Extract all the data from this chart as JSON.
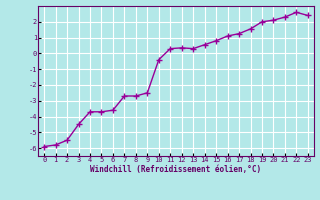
{
  "x": [
    0,
    1,
    2,
    3,
    4,
    5,
    6,
    7,
    8,
    9,
    10,
    11,
    12,
    13,
    14,
    15,
    16,
    17,
    18,
    19,
    20,
    21,
    22,
    23
  ],
  "y": [
    -5.9,
    -5.8,
    -5.5,
    -4.5,
    -3.7,
    -3.7,
    -3.6,
    -2.7,
    -2.7,
    -2.5,
    -0.4,
    0.3,
    0.35,
    0.3,
    0.55,
    0.8,
    1.1,
    1.25,
    1.55,
    2.0,
    2.1,
    2.3,
    2.6,
    2.4
  ],
  "line_color": "#990099",
  "marker": "+",
  "marker_size": 4,
  "xlabel": "Windchill (Refroidissement éolien,°C)",
  "xlim": [
    -0.5,
    23.5
  ],
  "ylim": [
    -6.5,
    3.0
  ],
  "yticks": [
    -6,
    -5,
    -4,
    -3,
    -2,
    -1,
    0,
    1,
    2
  ],
  "xticks": [
    0,
    1,
    2,
    3,
    4,
    5,
    6,
    7,
    8,
    9,
    10,
    11,
    12,
    13,
    14,
    15,
    16,
    17,
    18,
    19,
    20,
    21,
    22,
    23
  ],
  "bg_color": "#b3e8e8",
  "grid_color": "#ffffff",
  "font_color": "#660066",
  "line_width": 1.0,
  "marker_edge_width": 1.0
}
